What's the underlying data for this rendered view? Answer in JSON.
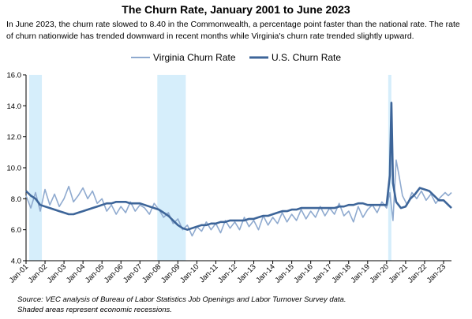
{
  "chart_data": {
    "type": "line",
    "title": "The Churn Rate, January 2001 to June 2023",
    "subtitle": "In June 2023, the churn rate slowed to 8.40 in the Commonwealth, a percentage point faster than the national rate. The rate of churn nationwide has trended downward in recent months while Virginia's churn rate trended slightly upward.",
    "xlabel": "",
    "ylabel": "",
    "ylim": [
      4.0,
      16.0
    ],
    "yticks": [
      "4.0",
      "6.0",
      "8.0",
      "10.0",
      "12.0",
      "14.0",
      "16.0"
    ],
    "xticks": [
      "Jan-01",
      "Jan-02",
      "Jan-03",
      "Jan-04",
      "Jan-05",
      "Jan-06",
      "Jan-07",
      "Jan-08",
      "Jan-09",
      "Jan-10",
      "Jan-11",
      "Jan-12",
      "Jan-13",
      "Jan-14",
      "Jan-15",
      "Jan-16",
      "Jan-17",
      "Jan-18",
      "Jan-19",
      "Jan-20",
      "Jan-21",
      "Jan-22",
      "Jan-23"
    ],
    "x_range": [
      "2001-01",
      "2023-06"
    ],
    "legend": "top-center",
    "grid": false,
    "series": [
      {
        "name": "Virginia Churn Rate",
        "color": "#8FAACF",
        "points": [
          [
            "2001-01",
            8.2
          ],
          [
            "2001-04",
            7.4
          ],
          [
            "2001-07",
            8.4
          ],
          [
            "2001-10",
            7.2
          ],
          [
            "2002-01",
            8.6
          ],
          [
            "2002-04",
            7.6
          ],
          [
            "2002-07",
            8.3
          ],
          [
            "2002-10",
            7.5
          ],
          [
            "2003-01",
            8.0
          ],
          [
            "2003-04",
            8.8
          ],
          [
            "2003-07",
            7.8
          ],
          [
            "2003-10",
            8.2
          ],
          [
            "2004-01",
            8.7
          ],
          [
            "2004-04",
            8.0
          ],
          [
            "2004-07",
            8.5
          ],
          [
            "2004-10",
            7.7
          ],
          [
            "2005-01",
            8.0
          ],
          [
            "2005-04",
            7.2
          ],
          [
            "2005-07",
            7.6
          ],
          [
            "2005-10",
            7.0
          ],
          [
            "2006-01",
            7.5
          ],
          [
            "2006-04",
            7.1
          ],
          [
            "2006-07",
            7.8
          ],
          [
            "2006-10",
            7.2
          ],
          [
            "2007-01",
            7.6
          ],
          [
            "2007-04",
            7.4
          ],
          [
            "2007-07",
            7.0
          ],
          [
            "2007-10",
            7.7
          ],
          [
            "2008-01",
            7.3
          ],
          [
            "2008-04",
            6.8
          ],
          [
            "2008-07",
            7.1
          ],
          [
            "2008-10",
            6.4
          ],
          [
            "2009-01",
            6.7
          ],
          [
            "2009-04",
            6.0
          ],
          [
            "2009-07",
            6.3
          ],
          [
            "2009-10",
            5.6
          ],
          [
            "2010-01",
            6.2
          ],
          [
            "2010-04",
            5.9
          ],
          [
            "2010-07",
            6.5
          ],
          [
            "2010-10",
            6.0
          ],
          [
            "2011-01",
            6.4
          ],
          [
            "2011-04",
            5.8
          ],
          [
            "2011-07",
            6.6
          ],
          [
            "2011-10",
            6.1
          ],
          [
            "2012-01",
            6.5
          ],
          [
            "2012-04",
            6.0
          ],
          [
            "2012-07",
            6.8
          ],
          [
            "2012-10",
            6.2
          ],
          [
            "2013-01",
            6.6
          ],
          [
            "2013-04",
            6.0
          ],
          [
            "2013-07",
            6.9
          ],
          [
            "2013-10",
            6.3
          ],
          [
            "2014-01",
            6.8
          ],
          [
            "2014-04",
            6.4
          ],
          [
            "2014-07",
            7.1
          ],
          [
            "2014-10",
            6.5
          ],
          [
            "2015-01",
            7.0
          ],
          [
            "2015-04",
            6.6
          ],
          [
            "2015-07",
            7.3
          ],
          [
            "2015-10",
            6.7
          ],
          [
            "2016-01",
            7.2
          ],
          [
            "2016-04",
            6.8
          ],
          [
            "2016-07",
            7.5
          ],
          [
            "2016-10",
            6.9
          ],
          [
            "2017-01",
            7.4
          ],
          [
            "2017-04",
            7.0
          ],
          [
            "2017-07",
            7.7
          ],
          [
            "2017-10",
            6.9
          ],
          [
            "2018-01",
            7.2
          ],
          [
            "2018-04",
            6.5
          ],
          [
            "2018-07",
            7.5
          ],
          [
            "2018-10",
            6.8
          ],
          [
            "2019-01",
            7.3
          ],
          [
            "2019-04",
            7.6
          ],
          [
            "2019-07",
            7.1
          ],
          [
            "2019-10",
            7.8
          ],
          [
            "2020-01",
            7.4
          ],
          [
            "2020-03",
            8.4
          ],
          [
            "2020-05",
            6.6
          ],
          [
            "2020-07",
            10.5
          ],
          [
            "2020-09",
            9.4
          ],
          [
            "2020-11",
            8.2
          ],
          [
            "2021-02",
            7.6
          ],
          [
            "2021-05",
            8.4
          ],
          [
            "2021-08",
            8.0
          ],
          [
            "2021-11",
            8.5
          ],
          [
            "2022-02",
            7.9
          ],
          [
            "2022-05",
            8.3
          ],
          [
            "2022-08",
            7.7
          ],
          [
            "2022-11",
            8.1
          ],
          [
            "2023-02",
            8.4
          ],
          [
            "2023-04",
            8.2
          ],
          [
            "2023-06",
            8.4
          ]
        ]
      },
      {
        "name": "U.S. Churn Rate",
        "color": "#3D6599",
        "points": [
          [
            "2001-01",
            8.5
          ],
          [
            "2001-04",
            8.2
          ],
          [
            "2001-07",
            8.0
          ],
          [
            "2001-10",
            7.6
          ],
          [
            "2002-01",
            7.5
          ],
          [
            "2002-04",
            7.4
          ],
          [
            "2002-07",
            7.3
          ],
          [
            "2002-10",
            7.2
          ],
          [
            "2003-01",
            7.1
          ],
          [
            "2003-04",
            7.0
          ],
          [
            "2003-07",
            7.0
          ],
          [
            "2003-10",
            7.1
          ],
          [
            "2004-01",
            7.2
          ],
          [
            "2004-04",
            7.3
          ],
          [
            "2004-07",
            7.4
          ],
          [
            "2004-10",
            7.5
          ],
          [
            "2005-01",
            7.6
          ],
          [
            "2005-04",
            7.7
          ],
          [
            "2005-07",
            7.7
          ],
          [
            "2005-10",
            7.8
          ],
          [
            "2006-01",
            7.8
          ],
          [
            "2006-04",
            7.8
          ],
          [
            "2006-07",
            7.7
          ],
          [
            "2006-10",
            7.7
          ],
          [
            "2007-01",
            7.7
          ],
          [
            "2007-04",
            7.6
          ],
          [
            "2007-07",
            7.5
          ],
          [
            "2007-10",
            7.4
          ],
          [
            "2008-01",
            7.3
          ],
          [
            "2008-04",
            7.1
          ],
          [
            "2008-07",
            6.9
          ],
          [
            "2008-10",
            6.6
          ],
          [
            "2009-01",
            6.3
          ],
          [
            "2009-04",
            6.1
          ],
          [
            "2009-07",
            6.0
          ],
          [
            "2009-10",
            6.1
          ],
          [
            "2010-01",
            6.2
          ],
          [
            "2010-04",
            6.3
          ],
          [
            "2010-07",
            6.3
          ],
          [
            "2010-10",
            6.4
          ],
          [
            "2011-01",
            6.4
          ],
          [
            "2011-04",
            6.5
          ],
          [
            "2011-07",
            6.5
          ],
          [
            "2011-10",
            6.6
          ],
          [
            "2012-01",
            6.6
          ],
          [
            "2012-04",
            6.6
          ],
          [
            "2012-07",
            6.6
          ],
          [
            "2012-10",
            6.7
          ],
          [
            "2013-01",
            6.7
          ],
          [
            "2013-04",
            6.8
          ],
          [
            "2013-07",
            6.9
          ],
          [
            "2013-10",
            6.9
          ],
          [
            "2014-01",
            7.0
          ],
          [
            "2014-04",
            7.1
          ],
          [
            "2014-07",
            7.2
          ],
          [
            "2014-10",
            7.2
          ],
          [
            "2015-01",
            7.3
          ],
          [
            "2015-04",
            7.3
          ],
          [
            "2015-07",
            7.4
          ],
          [
            "2015-10",
            7.4
          ],
          [
            "2016-01",
            7.4
          ],
          [
            "2016-04",
            7.4
          ],
          [
            "2016-07",
            7.4
          ],
          [
            "2016-10",
            7.4
          ],
          [
            "2017-01",
            7.4
          ],
          [
            "2017-04",
            7.4
          ],
          [
            "2017-07",
            7.5
          ],
          [
            "2017-10",
            7.5
          ],
          [
            "2018-01",
            7.6
          ],
          [
            "2018-04",
            7.6
          ],
          [
            "2018-07",
            7.7
          ],
          [
            "2018-10",
            7.7
          ],
          [
            "2019-01",
            7.6
          ],
          [
            "2019-04",
            7.6
          ],
          [
            "2019-07",
            7.6
          ],
          [
            "2019-10",
            7.6
          ],
          [
            "2020-01",
            7.6
          ],
          [
            "2020-03",
            9.5
          ],
          [
            "2020-04",
            14.2
          ],
          [
            "2020-05",
            9.0
          ],
          [
            "2020-07",
            7.8
          ],
          [
            "2020-10",
            7.4
          ],
          [
            "2021-01",
            7.5
          ],
          [
            "2021-04",
            8.0
          ],
          [
            "2021-07",
            8.3
          ],
          [
            "2021-10",
            8.7
          ],
          [
            "2022-01",
            8.6
          ],
          [
            "2022-04",
            8.5
          ],
          [
            "2022-07",
            8.2
          ],
          [
            "2022-10",
            7.9
          ],
          [
            "2023-01",
            7.9
          ],
          [
            "2023-04",
            7.6
          ],
          [
            "2023-06",
            7.4
          ]
        ]
      }
    ],
    "recessions": [
      {
        "start": "2001-03",
        "end": "2001-11"
      },
      {
        "start": "2007-12",
        "end": "2009-06"
      },
      {
        "start": "2020-02",
        "end": "2020-04"
      }
    ]
  },
  "source": {
    "line1": "Source: VEC analysis of Bureau of Labor Statistics Job Openings and Labor Turnover Survey data.",
    "line2": "Shaded areas represent economic recessions."
  }
}
